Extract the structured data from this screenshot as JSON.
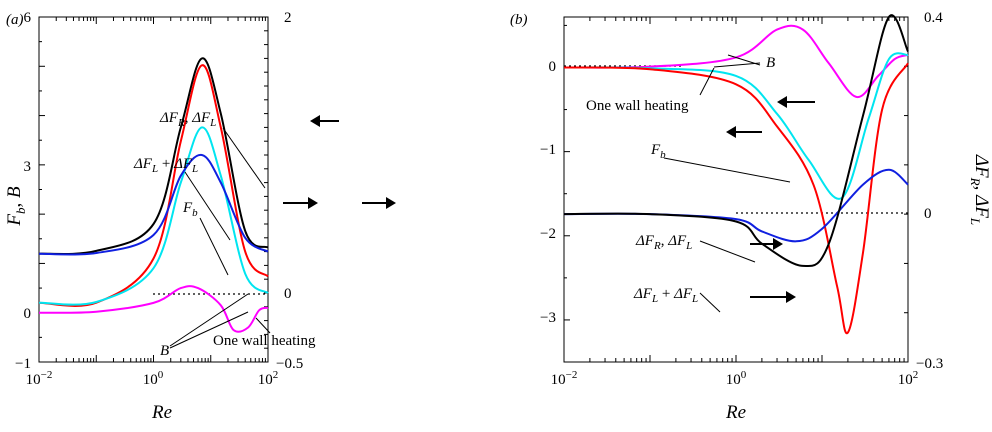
{
  "chart_data": [
    {
      "type": "line",
      "panel_label": "(a)",
      "xlabel": "Re",
      "ylabel_left": "F_b, B",
      "xscale": "log",
      "xlim": [
        0.01,
        100
      ],
      "ylim_left": [
        -1,
        6
      ],
      "ylim_right": [
        -0.5,
        2
      ],
      "x_ticks": [
        "10^-2",
        "10^0",
        "10^2"
      ],
      "y_ticks_left": [
        "6",
        "3",
        "0",
        "−1"
      ],
      "y_ticks_right": [
        "2",
        "0",
        "−0.5"
      ],
      "reference_line": {
        "axis": "right",
        "value": 0,
        "style": "dotted",
        "from_x": 1,
        "to_x": 100
      },
      "series": [
        {
          "color": "#000000",
          "axis": "right",
          "points": [
            [
              0.01,
              0.285
            ],
            [
              0.1,
              0.305
            ],
            [
              1,
              0.5
            ],
            [
              3,
              1.2
            ],
            [
              7,
              1.7
            ],
            [
              15,
              1.3
            ],
            [
              40,
              0.45
            ],
            [
              100,
              0.33
            ]
          ]
        },
        {
          "color": "#ff0000",
          "axis": "right",
          "points": [
            [
              0.01,
              -0.07
            ],
            [
              0.1,
              -0.07
            ],
            [
              1,
              0.25
            ],
            [
              3,
              1.1
            ],
            [
              7,
              1.65
            ],
            [
              15,
              1.2
            ],
            [
              40,
              0.3
            ],
            [
              100,
              0.12
            ]
          ]
        },
        {
          "color": "#00e5f0",
          "axis": "right",
          "points": [
            [
              0.01,
              -0.07
            ],
            [
              0.1,
              -0.065
            ],
            [
              1,
              0.18
            ],
            [
              3,
              0.8
            ],
            [
              7,
              1.2
            ],
            [
              15,
              0.85
            ],
            [
              40,
              0.14
            ],
            [
              100,
              0.0
            ]
          ]
        },
        {
          "color": "#1020e0",
          "axis": "right",
          "points": [
            [
              0.01,
              0.285
            ],
            [
              0.1,
              0.29
            ],
            [
              1,
              0.42
            ],
            [
              3,
              0.85
            ],
            [
              7,
              1.0
            ],
            [
              15,
              0.8
            ],
            [
              40,
              0.4
            ],
            [
              100,
              0.3
            ]
          ]
        },
        {
          "color": "#ff00ff",
          "axis": "left",
          "points": [
            [
              0.01,
              0.0
            ],
            [
              0.1,
              0.02
            ],
            [
              1,
              0.2
            ],
            [
              3,
              0.5
            ],
            [
              6,
              0.5
            ],
            [
              15,
              0.15
            ],
            [
              25,
              -0.35
            ],
            [
              45,
              -0.3
            ],
            [
              70,
              0.05
            ],
            [
              100,
              0.1
            ]
          ]
        }
      ],
      "annotations": [
        "ΔF_R, ΔF_L",
        "ΔF_L + ΔF_L",
        "F_b",
        "B",
        "One wall heating"
      ]
    },
    {
      "type": "line",
      "panel_label": "(b)",
      "xlabel": "Re",
      "ylabel_right": "ΔF_R, ΔF_L",
      "xscale": "log",
      "xlim": [
        0.01,
        100
      ],
      "ylim_left": [
        -3.5,
        0.6
      ],
      "ylim_right": [
        -0.3,
        0.4
      ],
      "x_ticks": [
        "10^-2",
        "10^0",
        "10^2"
      ],
      "y_ticks_left": [
        "0",
        "−1",
        "−2",
        "−3"
      ],
      "y_ticks_right": [
        "0.4",
        "0",
        "−0.3"
      ],
      "reference_lines": [
        {
          "axis": "left",
          "value": 0,
          "style": "dotted",
          "from_x": 0.01,
          "to_x": 1.3
        },
        {
          "axis": "right",
          "value": 0,
          "style": "dotted",
          "from_x": 1,
          "to_x": 100
        }
      ],
      "series": [
        {
          "color": "#ff00ff",
          "axis": "left",
          "points": [
            [
              0.01,
              0
            ],
            [
              0.1,
              0.01
            ],
            [
              1,
              0.12
            ],
            [
              3,
              0.45
            ],
            [
              6,
              0.45
            ],
            [
              12,
              0.05
            ],
            [
              25,
              -0.35
            ],
            [
              45,
              -0.1
            ],
            [
              70,
              0.1
            ],
            [
              100,
              0.15
            ]
          ]
        },
        {
          "color": "#00e5f0",
          "axis": "left",
          "points": [
            [
              0.01,
              0
            ],
            [
              0.1,
              -0.01
            ],
            [
              1,
              -0.1
            ],
            [
              3,
              -0.55
            ],
            [
              7,
              -1.1
            ],
            [
              17,
              -1.55
            ],
            [
              35,
              -0.6
            ],
            [
              60,
              0.1
            ],
            [
              100,
              0.15
            ]
          ]
        },
        {
          "color": "#ff0000",
          "axis": "left",
          "points": [
            [
              0.01,
              0
            ],
            [
              0.1,
              -0.02
            ],
            [
              1,
              -0.2
            ],
            [
              3,
              -0.7
            ],
            [
              8,
              -1.4
            ],
            [
              15,
              -2.6
            ],
            [
              20,
              -3.15
            ],
            [
              30,
              -2.2
            ],
            [
              50,
              -0.5
            ],
            [
              100,
              0.05
            ]
          ]
        },
        {
          "color": "#1020e0",
          "axis": "right",
          "points": [
            [
              0.01,
              0
            ],
            [
              0.1,
              0
            ],
            [
              1,
              -0.01
            ],
            [
              2,
              -0.035
            ],
            [
              5,
              -0.055
            ],
            [
              10,
              -0.03
            ],
            [
              30,
              0.06
            ],
            [
              60,
              0.09
            ],
            [
              100,
              0.06
            ]
          ]
        },
        {
          "color": "#000000",
          "axis": "right",
          "points": [
            [
              0.01,
              0
            ],
            [
              0.1,
              0
            ],
            [
              1,
              -0.015
            ],
            [
              2,
              -0.06
            ],
            [
              6,
              -0.105
            ],
            [
              12,
              -0.06
            ],
            [
              30,
              0.2
            ],
            [
              60,
              0.4
            ],
            [
              100,
              0.33
            ]
          ]
        }
      ],
      "annotations": [
        "B",
        "One wall heating",
        "F_b",
        "ΔF_R, ΔF_L",
        "ΔF_L + ΔF_L"
      ]
    }
  ]
}
